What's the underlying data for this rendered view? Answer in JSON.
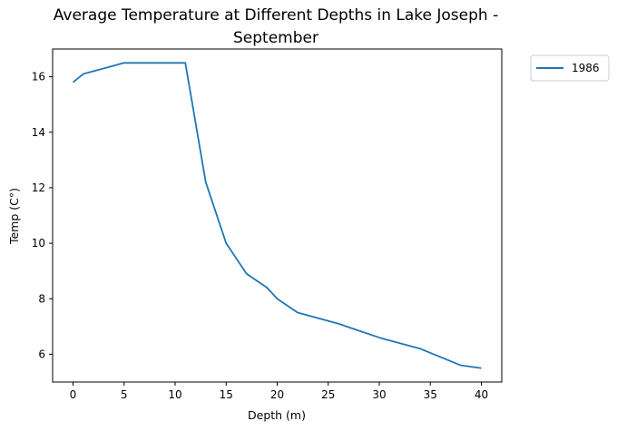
{
  "chart_data": {
    "type": "line",
    "title_line1": "Average Temperature at Different Depths in Lake Joseph -",
    "title_line2": "September",
    "xlabel": "Depth (m)",
    "ylabel": "Temp (C°)",
    "xlim": [
      -2,
      42
    ],
    "ylim": [
      5,
      17
    ],
    "xticks": [
      0,
      5,
      10,
      15,
      20,
      25,
      30,
      35,
      40
    ],
    "yticks": [
      6,
      8,
      10,
      12,
      14,
      16
    ],
    "grid": false,
    "legend_position": "outside-top-right",
    "series": [
      {
        "name": "1986",
        "color": "#1f77b4",
        "x": [
          0,
          1,
          5,
          11,
          13,
          15,
          17,
          19,
          20,
          22,
          26,
          30,
          34,
          38,
          40
        ],
        "y": [
          15.8,
          16.1,
          16.5,
          16.5,
          12.2,
          10.0,
          8.9,
          8.4,
          8.0,
          7.5,
          7.1,
          6.6,
          6.2,
          5.6,
          5.5
        ]
      }
    ]
  }
}
